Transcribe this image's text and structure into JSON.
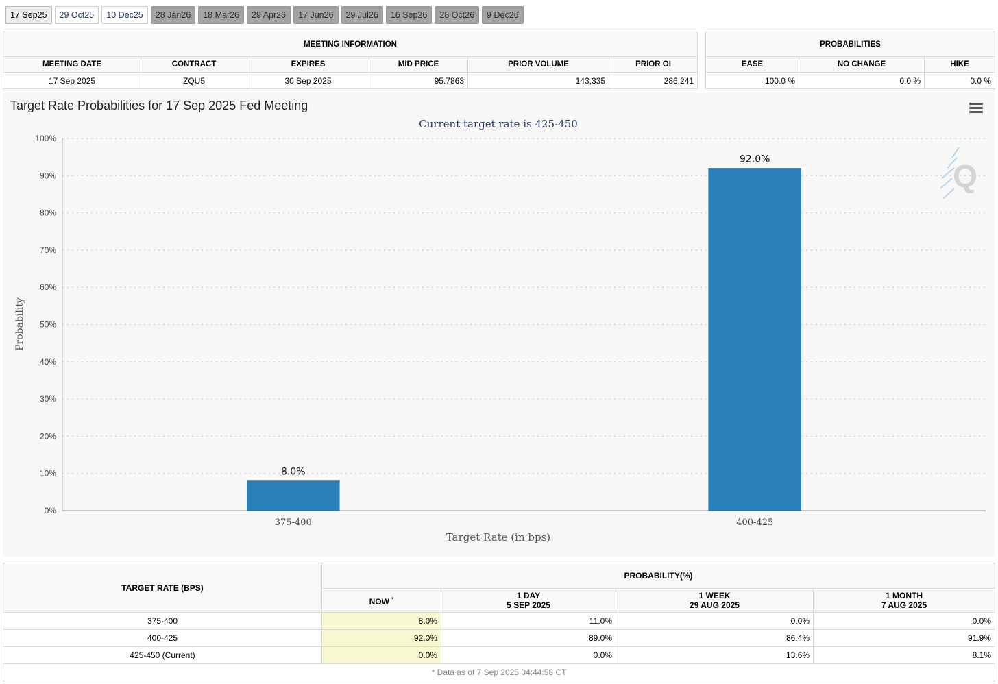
{
  "tabs": [
    {
      "label": "17 Sep25",
      "state": "selected"
    },
    {
      "label": "29 Oct25",
      "state": "active"
    },
    {
      "label": "10 Dec25",
      "state": "active"
    },
    {
      "label": "28 Jan26",
      "state": "inactive"
    },
    {
      "label": "18 Mar26",
      "state": "inactive"
    },
    {
      "label": "29 Apr26",
      "state": "inactive"
    },
    {
      "label": "17 Jun26",
      "state": "inactive"
    },
    {
      "label": "29 Jul26",
      "state": "inactive"
    },
    {
      "label": "16 Sep26",
      "state": "inactive"
    },
    {
      "label": "28 Oct26",
      "state": "inactive"
    },
    {
      "label": "9 Dec26",
      "state": "inactive"
    }
  ],
  "meeting_info": {
    "group_header": "MEETING INFORMATION",
    "columns": [
      "MEETING DATE",
      "CONTRACT",
      "EXPIRES",
      "MID PRICE",
      "PRIOR VOLUME",
      "PRIOR OI"
    ],
    "row": [
      "17 Sep 2025",
      "ZQU5",
      "30 Sep 2025",
      "95.7863",
      "143,335",
      "286,241"
    ]
  },
  "probabilities": {
    "group_header": "PROBABILITIES",
    "columns": [
      "EASE",
      "NO CHANGE",
      "HIKE"
    ],
    "row": [
      "100.0 %",
      "0.0 %",
      "0.0 %"
    ]
  },
  "chart": {
    "title": "Target Rate Probabilities for 17 Sep 2025 Fed Meeting",
    "menu_icon": "hamburger-menu-icon",
    "watermark_icon": "cme-q-logo-icon"
  },
  "chart_data": {
    "type": "bar",
    "title": "Target Rate Probabilities for 17 Sep 2025 Fed Meeting",
    "subtitle": "Current target rate is 425-450",
    "categories": [
      "375-400",
      "400-425"
    ],
    "values": [
      8.0,
      92.0
    ],
    "data_labels": [
      "8.0%",
      "92.0%"
    ],
    "xlabel": "Target Rate (in bps)",
    "ylabel": "Probability",
    "ylim": [
      0,
      100
    ],
    "yticks": [
      0,
      10,
      20,
      30,
      40,
      50,
      60,
      70,
      80,
      90,
      100
    ],
    "ytick_labels": [
      "0%",
      "10%",
      "20%",
      "30%",
      "40%",
      "50%",
      "60%",
      "70%",
      "80%",
      "90%",
      "100%"
    ],
    "grid": true,
    "bar_color": "#2a7fb8"
  },
  "rate_table": {
    "col_header": "TARGET RATE (BPS)",
    "group_header": "PROBABILITY(%)",
    "subheaders": [
      {
        "line1": "NOW",
        "line2": "",
        "star": "*"
      },
      {
        "line1": "1 DAY",
        "line2": "5 SEP 2025",
        "star": ""
      },
      {
        "line1": "1 WEEK",
        "line2": "29 AUG 2025",
        "star": ""
      },
      {
        "line1": "1 MONTH",
        "line2": "7 AUG 2025",
        "star": ""
      }
    ],
    "rows": [
      {
        "rate": "375-400",
        "values": [
          "8.0%",
          "11.0%",
          "0.0%",
          "0.0%"
        ]
      },
      {
        "rate": "400-425",
        "values": [
          "92.0%",
          "89.0%",
          "86.4%",
          "91.9%"
        ]
      },
      {
        "rate": "425-450 (Current)",
        "values": [
          "0.0%",
          "0.0%",
          "13.6%",
          "8.1%"
        ]
      }
    ],
    "footnote": "* Data as of 7 Sep 2025 04:44:58 CT"
  }
}
